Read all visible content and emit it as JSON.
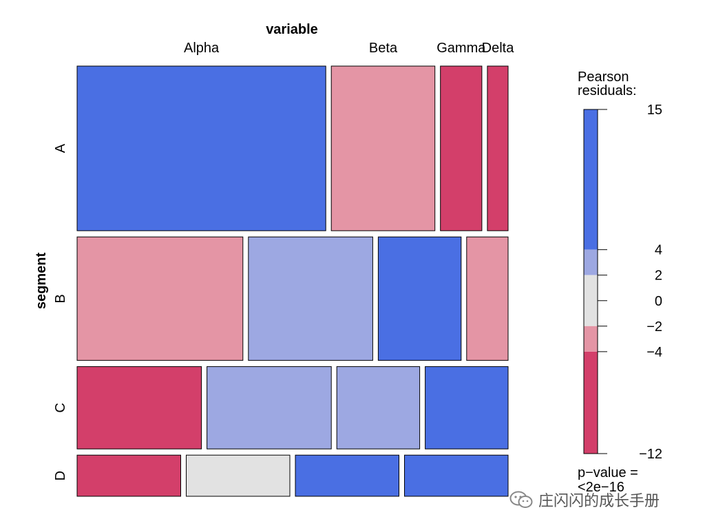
{
  "chart_data": {
    "type": "mosaic",
    "x_variable_label": "variable",
    "y_variable_label": "segment",
    "columns": [
      "Alpha",
      "Beta",
      "Gamma",
      "Delta"
    ],
    "rows": [
      "A",
      "B",
      "C",
      "D"
    ],
    "row_proportions": [
      0.4,
      0.3,
      0.2,
      0.1
    ],
    "cell_proportions": [
      [
        0.6,
        0.25,
        0.1,
        0.05
      ],
      [
        0.4,
        0.3,
        0.2,
        0.1
      ],
      [
        0.3,
        0.3,
        0.2,
        0.2
      ],
      [
        0.25,
        0.25,
        0.25,
        0.25
      ]
    ],
    "residual_bins": [
      [
        ">4",
        "-4 to -2",
        "<-4",
        "<-4"
      ],
      [
        "-4 to -2",
        "2 to 4",
        ">4",
        "-4 to -2"
      ],
      [
        "<-4",
        "2 to 4",
        "2 to 4",
        ">4"
      ],
      [
        "<-4",
        "-2 to 2",
        ">4",
        ">4"
      ]
    ],
    "legend": {
      "title": "Pearson\nresiduals:",
      "min": -12,
      "max": 15,
      "breaks": [
        4,
        2,
        0,
        -2,
        -4
      ],
      "tick_labels": [
        "15",
        "4",
        "2",
        "0",
        "−2",
        "−4",
        "−12"
      ],
      "bins": [
        {
          "from": 4,
          "to": 15,
          "color": "#4A6FE3"
        },
        {
          "from": 2,
          "to": 4,
          "color": "#9DA8E2"
        },
        {
          "from": -2,
          "to": 2,
          "color": "#E2E2E2"
        },
        {
          "from": -4,
          "to": -2,
          "color": "#E495A5"
        },
        {
          "from": -12,
          "to": -4,
          "color": "#D33F6A"
        }
      ]
    },
    "p_value_label": "p−value =",
    "p_value": "<2e−16"
  },
  "watermark": {
    "text": "庄闪闪的成长手册",
    "icon": "wechat-icon"
  }
}
